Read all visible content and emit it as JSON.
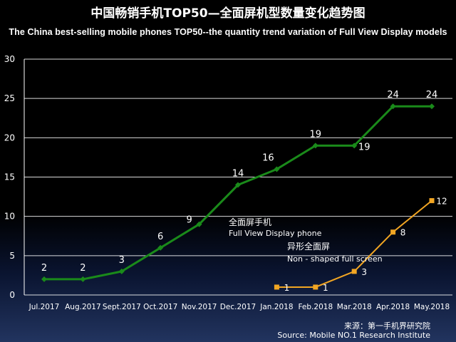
{
  "title_cn": "中国畅销手机TOP50—全面屏机型数量变化趋势图",
  "title_en": "The China best-selling mobile phones TOP50--the quantity trend variation of Full View Display models",
  "source_cn": "来源：第一手机界研究院",
  "source_en": "Source: Mobile NO.1 Research Institute",
  "colors": {
    "grid": "#ffffff",
    "series_fullview": "#1a8a1a",
    "series_nonshaped": "#f2a623"
  },
  "chart_data": {
    "type": "line",
    "categories": [
      "Jul.2017",
      "Aug.2017",
      "Sept.2017",
      "Oct.2017",
      "Nov.2017",
      "Dec.2017",
      "Jan.2018",
      "Feb.2018",
      "Mar.2018",
      "Apr.2018",
      "May.2018"
    ],
    "ylim": [
      0,
      30
    ],
    "yticks": [
      0,
      5,
      10,
      15,
      20,
      25,
      30
    ],
    "grid": true,
    "series": [
      {
        "name_cn": "全面屏手机",
        "name_en": "Full View Display phone",
        "values": [
          2,
          2,
          3,
          6,
          9,
          14,
          16,
          19,
          19,
          24,
          24
        ]
      },
      {
        "name_cn": "异形全面屏",
        "name_en": "Non - shaped full screen",
        "values": [
          null,
          null,
          null,
          null,
          null,
          null,
          1,
          1,
          3,
          8,
          12
        ]
      }
    ]
  }
}
